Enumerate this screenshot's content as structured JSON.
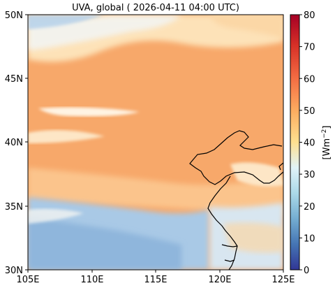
{
  "title": "UVA, global ( 2026-04-11 04:00 UTC)",
  "colorbar": {
    "label": "[Wm",
    "label_exp": "−2",
    "label_close": "]",
    "ticks": [
      "0",
      "10",
      "20",
      "30",
      "40",
      "50",
      "60",
      "70",
      "80"
    ],
    "range": [
      0,
      80
    ]
  },
  "map": {
    "lon_range": [
      105,
      125
    ],
    "lat_range": [
      30,
      50
    ],
    "x_ticks": [
      "105E",
      "110E",
      "115E",
      "120E",
      "125E"
    ],
    "y_ticks": [
      "30N",
      "35N",
      "40N",
      "45N",
      "50N"
    ],
    "colors": {
      "orange_main": "#f7a86a",
      "orange_light": "#fbc48c",
      "cloud_blue": "#a9c9e6",
      "deep_blue": "#6f9fcf",
      "cloud_white": "#f5f7f9",
      "coast": "#000000"
    }
  }
}
